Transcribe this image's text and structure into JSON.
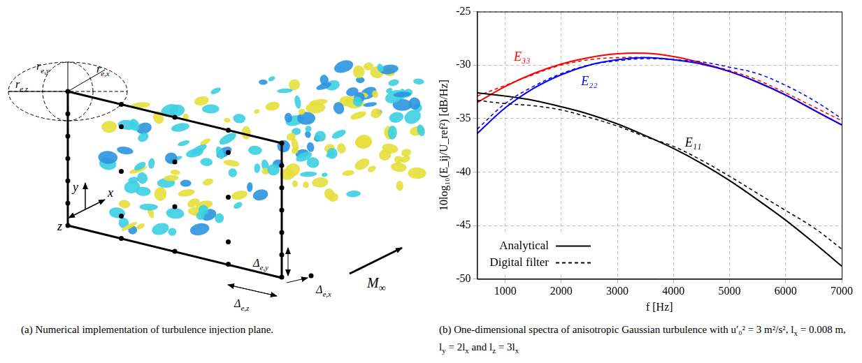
{
  "chart_data": {
    "type": "line",
    "x_label": "f [Hz]",
    "y_label": "10log₁₀(E_ij/U_ref²) [dB/Hz]",
    "x": [
      500,
      1000,
      1500,
      2000,
      2500,
      3000,
      3500,
      4000,
      4500,
      5000,
      5500,
      6000,
      6500,
      7000
    ],
    "series": [
      {
        "name": "Analytical",
        "color": "#000000",
        "line_style": "solid",
        "values": [
          -32.6,
          -32.9,
          -33.3,
          -33.9,
          -34.6,
          -35.5,
          -36.6,
          -37.8,
          -39.2,
          -40.8,
          -42.6,
          -44.5,
          -46.6,
          -48.8
        ]
      },
      {
        "name": "Digital filter",
        "color": "#000000",
        "line_style": "dashed",
        "values": [
          -33.3,
          -33.6,
          -33.8,
          -34.2,
          -34.9,
          -35.7,
          -36.7,
          -37.6,
          -38.9,
          -40.4,
          -42.0,
          -43.6,
          -45.2,
          -47.2
        ]
      },
      {
        "name": "Analytical",
        "color": "#0000ff",
        "line_style": "solid",
        "values": [
          -36.4,
          -34.0,
          -32.2,
          -30.9,
          -30.0,
          -29.5,
          -29.3,
          -29.5,
          -29.9,
          -30.6,
          -31.6,
          -32.8,
          -34.2,
          -35.6
        ]
      },
      {
        "name": "Digital filter",
        "color": "#0000ff",
        "line_style": "dashed",
        "values": [
          -36.0,
          -33.6,
          -32.0,
          -30.8,
          -30.0,
          -29.6,
          -29.4,
          -29.5,
          -29.7,
          -30.2,
          -30.8,
          -31.9,
          -33.3,
          -35.0
        ]
      },
      {
        "name": "Analytical",
        "color": "#ff0000",
        "line_style": "solid",
        "values": [
          -33.5,
          -32.0,
          -30.8,
          -29.9,
          -29.3,
          -28.95,
          -28.9,
          -29.2,
          -29.8,
          -30.6,
          -31.6,
          -32.8,
          -34.2,
          -35.6
        ]
      },
      {
        "name": "Digital filter",
        "color": "#ff0000",
        "line_style": "dashed",
        "values": [
          -32.9,
          -31.9,
          -30.9,
          -30.0,
          -29.5,
          -29.3,
          -29.3,
          -29.5,
          -29.9,
          -30.5,
          -31.4,
          -32.6,
          -33.9,
          -35.2
        ]
      }
    ],
    "annotations": [
      {
        "text": "E₃₃",
        "x": 1300,
        "y": -29.3,
        "color": "#ff0000"
      },
      {
        "text": "E₂₂",
        "x": 2500,
        "y": -31.6,
        "color": "#0000ff"
      },
      {
        "text": "E₁₁",
        "x": 4350,
        "y": -37.3,
        "color": "#000000"
      }
    ],
    "xlim": [
      500,
      7000
    ],
    "xticks": [
      1000,
      2000,
      3000,
      4000,
      5000,
      6000,
      7000
    ],
    "ylim": [
      -50,
      -25
    ],
    "yticks": [
      -50,
      -45,
      -40,
      -35,
      -30,
      -25
    ],
    "grid": true,
    "legend": "lower left"
  },
  "diagram": {
    "radii": [
      {
        "main": "r",
        "sub": "e,y"
      },
      {
        "main": "r",
        "sub": "e,x"
      },
      {
        "main": "r",
        "sub": "e,z"
      }
    ],
    "spacings": [
      {
        "main": "Δ",
        "sub": "e,y"
      },
      {
        "main": "Δ",
        "sub": "e,z"
      },
      {
        "main": "Δ",
        "sub": "e,x"
      }
    ],
    "axes": [
      "y",
      "x",
      "z"
    ],
    "flow": {
      "main": "M",
      "sub": "∞"
    }
  },
  "captions": {
    "a": [
      "(a) Numerical implementation of turbulence injection plane."
    ],
    "b": [
      "(b) One-dimensional spectra of anisotropic Gaussian turbulence with u′₀² = 3 m²/s², l",
      {
        "sub": "x"
      },
      " = 0.008 m, l",
      {
        "sub": "y"
      },
      " = 2l",
      {
        "sub": "x"
      },
      " and l",
      {
        "sub": "z"
      },
      " = 3l",
      {
        "sub": "x"
      }
    ]
  }
}
